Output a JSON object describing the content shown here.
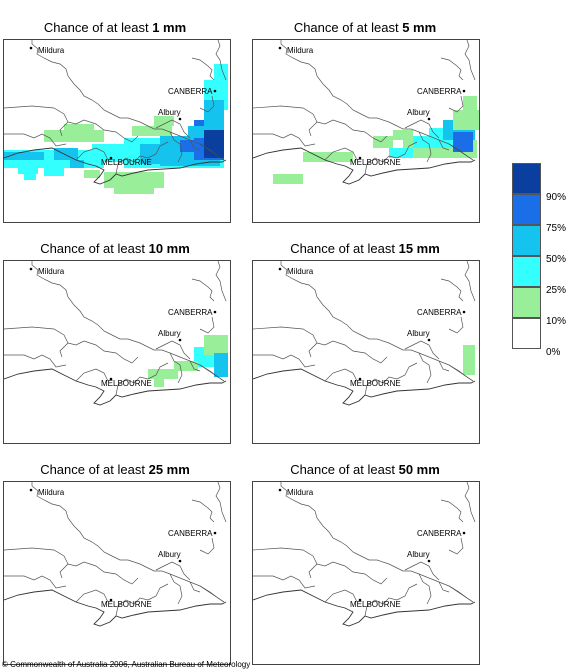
{
  "panels": [
    {
      "title_prefix": "Chance of at least ",
      "threshold": "1 mm"
    },
    {
      "title_prefix": "Chance of at least ",
      "threshold": "5 mm"
    },
    {
      "title_prefix": "Chance of at least ",
      "threshold": "10 mm"
    },
    {
      "title_prefix": "Chance of at least ",
      "threshold": "15 mm"
    },
    {
      "title_prefix": "Chance of at least ",
      "threshold": "25 mm"
    },
    {
      "title_prefix": "Chance of at least ",
      "threshold": "50 mm"
    }
  ],
  "places": {
    "mildura": "Mildura",
    "canberra": "CANBERRA",
    "albury": "Albury",
    "melbourne": "MELBOURNE"
  },
  "legend": [
    {
      "label": "90%",
      "color": "#0a3f9f"
    },
    {
      "label": "75%",
      "color": "#1a6ee8"
    },
    {
      "label": "50%",
      "color": "#15c4ee"
    },
    {
      "label": "25%",
      "color": "#33ffff"
    },
    {
      "label": "10%",
      "color": "#99ee99"
    },
    {
      "label": "0%",
      "color": "#ffffff"
    }
  ],
  "copyright": "© Commonwealth of Australia 2006, Australian Bureau of Meteorology"
}
